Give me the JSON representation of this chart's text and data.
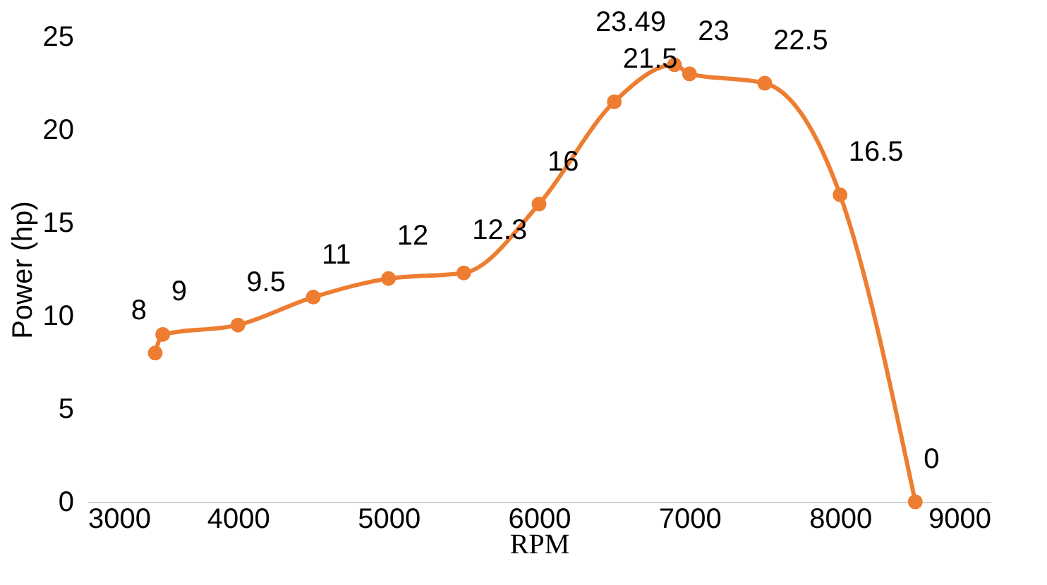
{
  "chart_data": {
    "type": "line",
    "xlabel": "RPM",
    "ylabel": "Power (hp)",
    "x": [
      3450,
      3500,
      4000,
      4500,
      5000,
      5500,
      6000,
      6500,
      6900,
      7000,
      7500,
      8000,
      8500
    ],
    "series": [
      {
        "color": "#ed7d31",
        "values": [
          8,
          9,
          9.5,
          11,
          12,
          12.3,
          16,
          21.5,
          23.49,
          23,
          22.5,
          16.5,
          0
        ]
      }
    ],
    "xlim": [
      3000,
      9000
    ],
    "xticks": [
      3000,
      4000,
      5000,
      6000,
      7000,
      8000,
      9000
    ],
    "ylim": [
      0,
      25
    ],
    "yticks": [
      0,
      5,
      10,
      15,
      20,
      25
    ],
    "grid": false,
    "marker": "circle",
    "line_style": "solid",
    "data_labels": true
  }
}
